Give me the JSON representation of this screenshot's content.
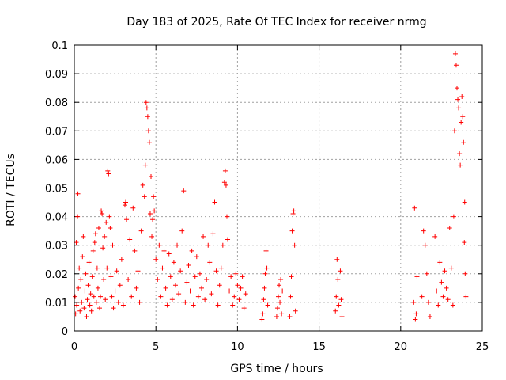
{
  "chart_data": {
    "type": "scatter",
    "title": "Day 183 of 2025, Rate Of TEC Index for receiver nrmg",
    "xlabel": "GPS time / hours",
    "ylabel": "ROTI / TECUs",
    "xlim": [
      0,
      25
    ],
    "ylim": [
      0,
      0.1
    ],
    "xticks": [
      0,
      5,
      10,
      15,
      20,
      25
    ],
    "xtick_labels": [
      "0",
      "5",
      "10",
      "15",
      "20",
      "25"
    ],
    "yticks": [
      0,
      0.01,
      0.02,
      0.03,
      0.04,
      0.05,
      0.06,
      0.07,
      0.08,
      0.09,
      0.1
    ],
    "ytick_labels": [
      "0",
      "0.01",
      "0.02",
      "0.03",
      "0.04",
      "0.05",
      "0.06",
      "0.07",
      "0.08",
      "0.09",
      "0.1"
    ],
    "grid": true,
    "marker": "+",
    "color": "#ff0000",
    "series": [
      {
        "values": [
          [
            0.05,
            0.012
          ],
          [
            0.08,
            0.006
          ],
          [
            0.12,
            0.031
          ],
          [
            0.15,
            0.009
          ],
          [
            0.2,
            0.04
          ],
          [
            0.22,
            0.048
          ],
          [
            0.25,
            0.015
          ],
          [
            0.3,
            0.022
          ],
          [
            0.35,
            0.007
          ],
          [
            0.4,
            0.018
          ],
          [
            0.45,
            0.01
          ],
          [
            0.5,
            0.026
          ],
          [
            0.55,
            0.033
          ],
          [
            0.6,
            0.008
          ],
          [
            0.65,
            0.014
          ],
          [
            0.7,
            0.02
          ],
          [
            0.75,
            0.005
          ],
          [
            0.8,
            0.011
          ],
          [
            0.85,
            0.016
          ],
          [
            0.9,
            0.024
          ],
          [
            0.95,
            0.009
          ],
          [
            1.0,
            0.013
          ],
          [
            1.05,
            0.007
          ],
          [
            1.1,
            0.019
          ],
          [
            1.15,
            0.028
          ],
          [
            1.2,
            0.012
          ],
          [
            1.25,
            0.031
          ],
          [
            1.3,
            0.034
          ],
          [
            1.35,
            0.01
          ],
          [
            1.4,
            0.022
          ],
          [
            1.45,
            0.015
          ],
          [
            1.5,
            0.036
          ],
          [
            1.55,
            0.008
          ],
          [
            1.6,
            0.012
          ],
          [
            1.65,
            0.042
          ],
          [
            1.7,
            0.041
          ],
          [
            1.75,
            0.029
          ],
          [
            1.8,
            0.018
          ],
          [
            1.85,
            0.033
          ],
          [
            1.9,
            0.011
          ],
          [
            1.95,
            0.038
          ],
          [
            2.0,
            0.022
          ],
          [
            2.05,
            0.056
          ],
          [
            2.1,
            0.055
          ],
          [
            2.15,
            0.04
          ],
          [
            2.2,
            0.036
          ],
          [
            2.25,
            0.019
          ],
          [
            2.3,
            0.012
          ],
          [
            2.35,
            0.03
          ],
          [
            2.4,
            0.008
          ],
          [
            2.5,
            0.014
          ],
          [
            2.6,
            0.021
          ],
          [
            2.7,
            0.01
          ],
          [
            2.8,
            0.016
          ],
          [
            2.9,
            0.025
          ],
          [
            3.0,
            0.009
          ],
          [
            3.1,
            0.044
          ],
          [
            3.15,
            0.045
          ],
          [
            3.2,
            0.039
          ],
          [
            3.3,
            0.018
          ],
          [
            3.4,
            0.032
          ],
          [
            3.5,
            0.012
          ],
          [
            3.6,
            0.043
          ],
          [
            3.7,
            0.028
          ],
          [
            3.8,
            0.015
          ],
          [
            3.9,
            0.021
          ],
          [
            4.0,
            0.01
          ],
          [
            4.1,
            0.035
          ],
          [
            4.2,
            0.051
          ],
          [
            4.3,
            0.047
          ],
          [
            4.35,
            0.058
          ],
          [
            4.4,
            0.08
          ],
          [
            4.45,
            0.078
          ],
          [
            4.5,
            0.075
          ],
          [
            4.55,
            0.07
          ],
          [
            4.6,
            0.066
          ],
          [
            4.65,
            0.041
          ],
          [
            4.7,
            0.054
          ],
          [
            4.75,
            0.033
          ],
          [
            4.8,
            0.039
          ],
          [
            4.85,
            0.047
          ],
          [
            4.9,
            0.042
          ],
          [
            5.0,
            0.025
          ],
          [
            5.1,
            0.018
          ],
          [
            5.2,
            0.03
          ],
          [
            5.3,
            0.012
          ],
          [
            5.4,
            0.022
          ],
          [
            5.5,
            0.028
          ],
          [
            5.6,
            0.015
          ],
          [
            5.7,
            0.009
          ],
          [
            5.8,
            0.027
          ],
          [
            5.9,
            0.019
          ],
          [
            6.0,
            0.011
          ],
          [
            6.1,
            0.024
          ],
          [
            6.2,
            0.016
          ],
          [
            6.3,
            0.03
          ],
          [
            6.4,
            0.013
          ],
          [
            6.5,
            0.021
          ],
          [
            6.6,
            0.035
          ],
          [
            6.7,
            0.049
          ],
          [
            6.8,
            0.01
          ],
          [
            6.9,
            0.017
          ],
          [
            7.0,
            0.023
          ],
          [
            7.1,
            0.014
          ],
          [
            7.2,
            0.028
          ],
          [
            7.3,
            0.009
          ],
          [
            7.4,
            0.019
          ],
          [
            7.5,
            0.026
          ],
          [
            7.6,
            0.012
          ],
          [
            7.7,
            0.02
          ],
          [
            7.8,
            0.015
          ],
          [
            7.9,
            0.033
          ],
          [
            8.0,
            0.011
          ],
          [
            8.1,
            0.018
          ],
          [
            8.2,
            0.03
          ],
          [
            8.3,
            0.024
          ],
          [
            8.4,
            0.013
          ],
          [
            8.5,
            0.034
          ],
          [
            8.6,
            0.045
          ],
          [
            8.7,
            0.021
          ],
          [
            8.8,
            0.009
          ],
          [
            8.9,
            0.016
          ],
          [
            9.0,
            0.022
          ],
          [
            9.1,
            0.03
          ],
          [
            9.2,
            0.052
          ],
          [
            9.25,
            0.056
          ],
          [
            9.3,
            0.051
          ],
          [
            9.35,
            0.04
          ],
          [
            9.4,
            0.032
          ],
          [
            9.5,
            0.014
          ],
          [
            9.6,
            0.019
          ],
          [
            9.7,
            0.009
          ],
          [
            9.8,
            0.012
          ],
          [
            9.9,
            0.02
          ],
          [
            10.0,
            0.016
          ],
          [
            10.1,
            0.011
          ],
          [
            10.2,
            0.015
          ],
          [
            10.3,
            0.019
          ],
          [
            10.4,
            0.008
          ],
          [
            10.5,
            0.013
          ],
          [
            11.5,
            0.004
          ],
          [
            11.55,
            0.006
          ],
          [
            11.6,
            0.011
          ],
          [
            11.65,
            0.015
          ],
          [
            11.7,
            0.02
          ],
          [
            11.75,
            0.028
          ],
          [
            11.8,
            0.022
          ],
          [
            11.85,
            0.009
          ],
          [
            12.4,
            0.005
          ],
          [
            12.45,
            0.008
          ],
          [
            12.5,
            0.012
          ],
          [
            12.55,
            0.016
          ],
          [
            12.6,
            0.01
          ],
          [
            12.65,
            0.018
          ],
          [
            12.7,
            0.006
          ],
          [
            12.75,
            0.014
          ],
          [
            13.2,
            0.005
          ],
          [
            13.25,
            0.012
          ],
          [
            13.3,
            0.019
          ],
          [
            13.35,
            0.035
          ],
          [
            13.4,
            0.041
          ],
          [
            13.45,
            0.042
          ],
          [
            13.5,
            0.03
          ],
          [
            13.55,
            0.007
          ],
          [
            16.0,
            0.007
          ],
          [
            16.05,
            0.012
          ],
          [
            16.1,
            0.025
          ],
          [
            16.15,
            0.018
          ],
          [
            16.2,
            0.009
          ],
          [
            16.3,
            0.021
          ],
          [
            16.35,
            0.011
          ],
          [
            16.4,
            0.005
          ],
          [
            20.8,
            0.01
          ],
          [
            20.85,
            0.043
          ],
          [
            20.9,
            0.004
          ],
          [
            20.95,
            0.006
          ],
          [
            21.0,
            0.019
          ],
          [
            21.3,
            0.012
          ],
          [
            21.4,
            0.035
          ],
          [
            21.5,
            0.03
          ],
          [
            21.6,
            0.02
          ],
          [
            21.7,
            0.01
          ],
          [
            21.8,
            0.005
          ],
          [
            22.1,
            0.033
          ],
          [
            22.2,
            0.014
          ],
          [
            22.3,
            0.009
          ],
          [
            22.4,
            0.024
          ],
          [
            22.5,
            0.017
          ],
          [
            22.6,
            0.012
          ],
          [
            22.7,
            0.021
          ],
          [
            22.8,
            0.015
          ],
          [
            22.9,
            0.011
          ],
          [
            23.0,
            0.036
          ],
          [
            23.1,
            0.022
          ],
          [
            23.2,
            0.009
          ],
          [
            23.25,
            0.04
          ],
          [
            23.3,
            0.07
          ],
          [
            23.35,
            0.097
          ],
          [
            23.4,
            0.093
          ],
          [
            23.45,
            0.085
          ],
          [
            23.5,
            0.081
          ],
          [
            23.55,
            0.078
          ],
          [
            23.6,
            0.062
          ],
          [
            23.65,
            0.058
          ],
          [
            23.7,
            0.073
          ],
          [
            23.75,
            0.082
          ],
          [
            23.8,
            0.075
          ],
          [
            23.85,
            0.066
          ],
          [
            23.9,
            0.031
          ],
          [
            23.95,
            0.02
          ],
          [
            24.0,
            0.012
          ],
          [
            23.92,
            0.045
          ]
        ]
      }
    ]
  }
}
